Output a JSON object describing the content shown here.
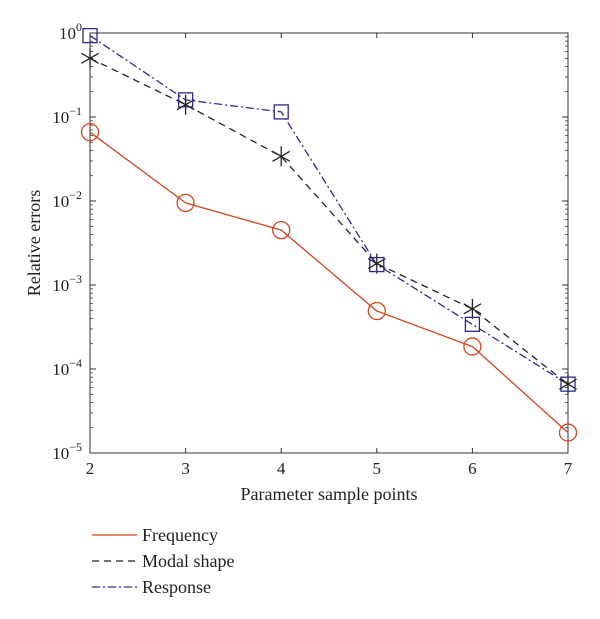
{
  "chart_data": {
    "type": "line",
    "xlabel": "Parameter sample points",
    "ylabel": "Relative errors",
    "x": [
      2,
      3,
      4,
      5,
      6,
      7
    ],
    "xlim": [
      2,
      7
    ],
    "ylim": [
      1e-05,
      1
    ],
    "yscale": "log",
    "x_tick_labels": [
      "2",
      "3",
      "4",
      "5",
      "6",
      "7"
    ],
    "y_ticks": [
      {
        "value": 1e-05,
        "base": "10",
        "exp": "−5"
      },
      {
        "value": 0.0001,
        "base": "10",
        "exp": "−4"
      },
      {
        "value": 0.001,
        "base": "10",
        "exp": "−3"
      },
      {
        "value": 0.01,
        "base": "10",
        "exp": "−2"
      },
      {
        "value": 0.1,
        "base": "10",
        "exp": "−1"
      },
      {
        "value": 1,
        "base": "10",
        "exp": "0"
      }
    ],
    "grid": false,
    "legend_position": "bottom-left, below plot",
    "series": [
      {
        "name": "Frequency",
        "values": [
          0.066,
          0.0095,
          0.0045,
          0.00049,
          0.000185,
          1.75e-05
        ],
        "color": "#d4461f",
        "dash": "solid",
        "marker": "circle"
      },
      {
        "name": "Modal shape",
        "values": [
          0.5,
          0.14,
          0.034,
          0.0018,
          0.00052,
          6.6e-05
        ],
        "color": "#222222",
        "dash": "dashed",
        "marker": "asterisk"
      },
      {
        "name": "Response",
        "values": [
          0.93,
          0.16,
          0.115,
          0.00175,
          0.00034,
          6.6e-05
        ],
        "color": "#2a2a8c",
        "dash": "dashdot",
        "marker": "square"
      }
    ]
  }
}
